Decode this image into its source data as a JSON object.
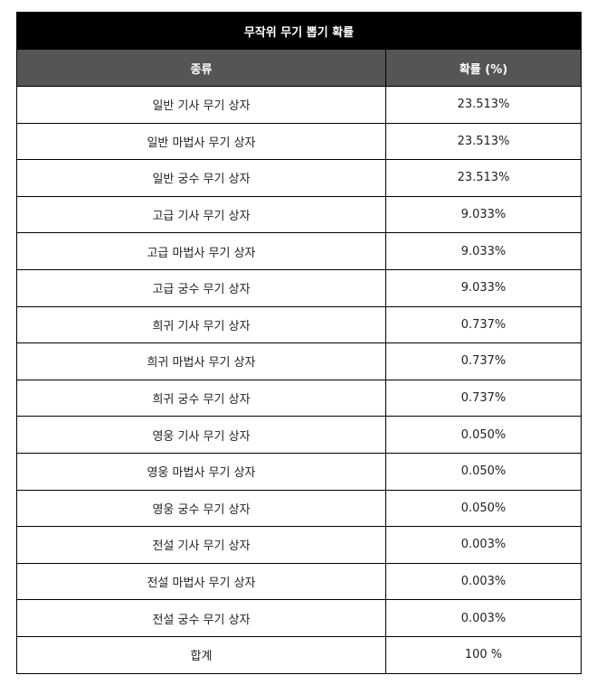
{
  "table": {
    "title": "무작위 무기 뽑기 확률",
    "headers": [
      "종류",
      "확률 (%)"
    ],
    "rows": [
      {
        "type": "일반 기사 무기 상자",
        "prob": "23.513%"
      },
      {
        "type": "일반 마법사 무기 상자",
        "prob": "23.513%"
      },
      {
        "type": "일반 궁수 무기 상자",
        "prob": "23.513%"
      },
      {
        "type": "고급 기사 무기 상자",
        "prob": "9.033%"
      },
      {
        "type": "고급 마법사 무기 상자",
        "prob": "9.033%"
      },
      {
        "type": "고급 궁수 무기 상자",
        "prob": "9.033%"
      },
      {
        "type": "희귀 기사 무기 상자",
        "prob": "0.737%"
      },
      {
        "type": "희귀 마법사 무기 상자",
        "prob": "0.737%"
      },
      {
        "type": "희귀 궁수 무기 상자",
        "prob": "0.737%"
      },
      {
        "type": "영웅 기사 무기 상자",
        "prob": "0.050%"
      },
      {
        "type": "영웅 마법사 무기 상자",
        "prob": "0.050%"
      },
      {
        "type": "영웅 궁수 무기 상자",
        "prob": "0.050%"
      },
      {
        "type": "전설 기사 무기 상자",
        "prob": "0.003%"
      },
      {
        "type": "전설 마법사 무기 상자",
        "prob": "0.003%"
      },
      {
        "type": "전설 궁수 무기 상자",
        "prob": "0.003%"
      },
      {
        "type": "합계",
        "prob": "100 %"
      }
    ]
  },
  "colors": {
    "title_bg": "#000000",
    "header_bg": "#555555",
    "border": "#000000"
  }
}
